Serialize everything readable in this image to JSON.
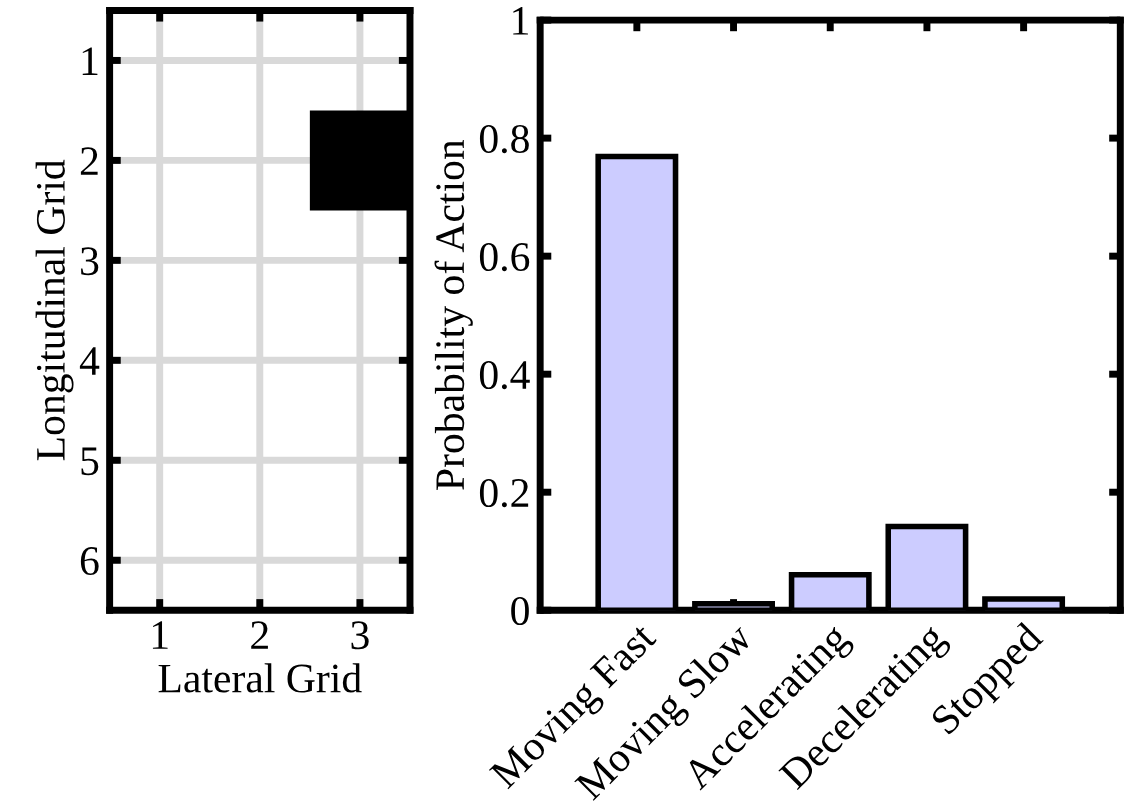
{
  "chart_data": [
    {
      "type": "bar",
      "xlabel": "Lateral Grid",
      "ylabel": "Longitudinal Grid",
      "x": [
        3
      ],
      "base": [
        1.5
      ],
      "values": [
        1
      ],
      "color": "#000000",
      "xlim": [
        0.5,
        3.5
      ],
      "ylim": [
        6.5,
        0.5
      ],
      "xticks": [
        1,
        2,
        3
      ],
      "yticks": [
        1,
        2,
        3,
        4,
        5,
        6
      ],
      "grid": true
    },
    {
      "type": "bar",
      "ylabel": "Probability of Action",
      "categories": [
        "Moving Fast",
        "Moving Slow",
        "Accelerating",
        "Decelerating",
        "Stopped"
      ],
      "values": [
        0.769,
        0.011,
        0.06,
        0.142,
        0.019
      ],
      "color": "#ccccff",
      "ylim": [
        0,
        1
      ],
      "yticks": [
        0,
        0.2,
        0.4,
        0.6,
        0.8,
        1
      ],
      "grid": false
    }
  ]
}
